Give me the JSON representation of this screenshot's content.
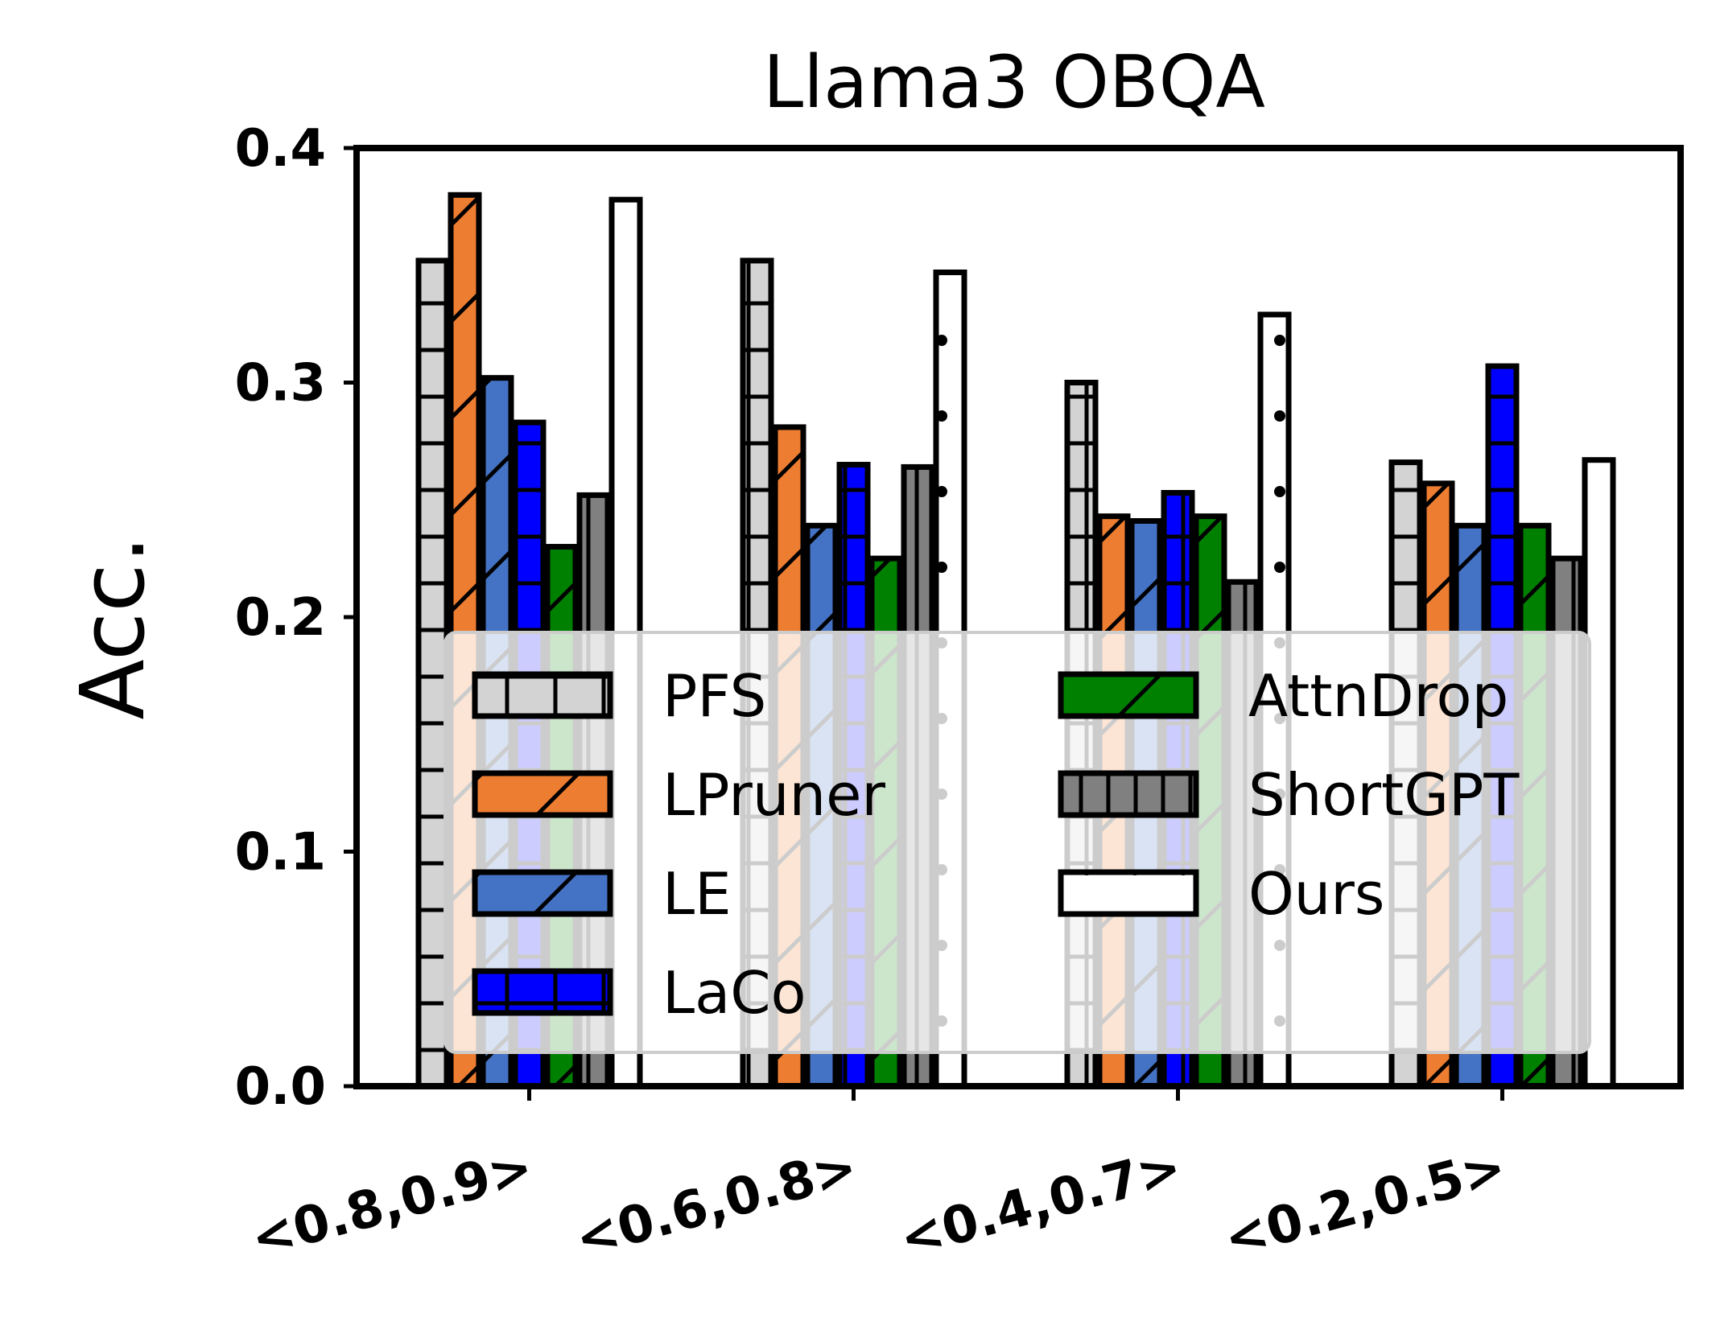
{
  "chart_data": {
    "type": "bar",
    "title": "Llama3  OBQA",
    "xlabel": "",
    "ylabel": "Acc.",
    "ylim": [
      0,
      0.4
    ],
    "yticks": [
      "0.0",
      "0.1",
      "0.2",
      "0.3",
      "0.4"
    ],
    "ytick_values": [
      0,
      0.1,
      0.2,
      0.3,
      0.4
    ],
    "categories": [
      "<0.8,0.9>",
      "<0.6,0.8>",
      "<0.4,0.7>",
      "<0.2,0.5>"
    ],
    "grid": false,
    "legend_position": "lower-center",
    "series": [
      {
        "name": "PFS",
        "values": [
          0.352,
          0.352,
          0.3,
          0.266
        ],
        "color": "#d3d3d3",
        "hatch": "plus"
      },
      {
        "name": "LPruner",
        "values": [
          0.38,
          0.281,
          0.243,
          0.257
        ],
        "color": "#ed7d31",
        "hatch": "slash"
      },
      {
        "name": "LE",
        "values": [
          0.302,
          0.239,
          0.241,
          0.239
        ],
        "color": "#4472c4",
        "hatch": "slash"
      },
      {
        "name": "LaCo",
        "values": [
          0.283,
          0.265,
          0.253,
          0.307
        ],
        "color": "#0000ff",
        "hatch": "plus"
      },
      {
        "name": "AttnDrop",
        "values": [
          0.23,
          0.225,
          0.243,
          0.239
        ],
        "color": "#008000",
        "hatch": "slash"
      },
      {
        "name": "ShortGPT",
        "values": [
          0.252,
          0.264,
          0.215,
          0.225
        ],
        "color": "#808080",
        "hatch": "vline"
      },
      {
        "name": "Ours",
        "values": [
          0.378,
          0.347,
          0.329,
          0.267
        ],
        "color": "#ffffff",
        "hatch": "dots"
      }
    ]
  }
}
